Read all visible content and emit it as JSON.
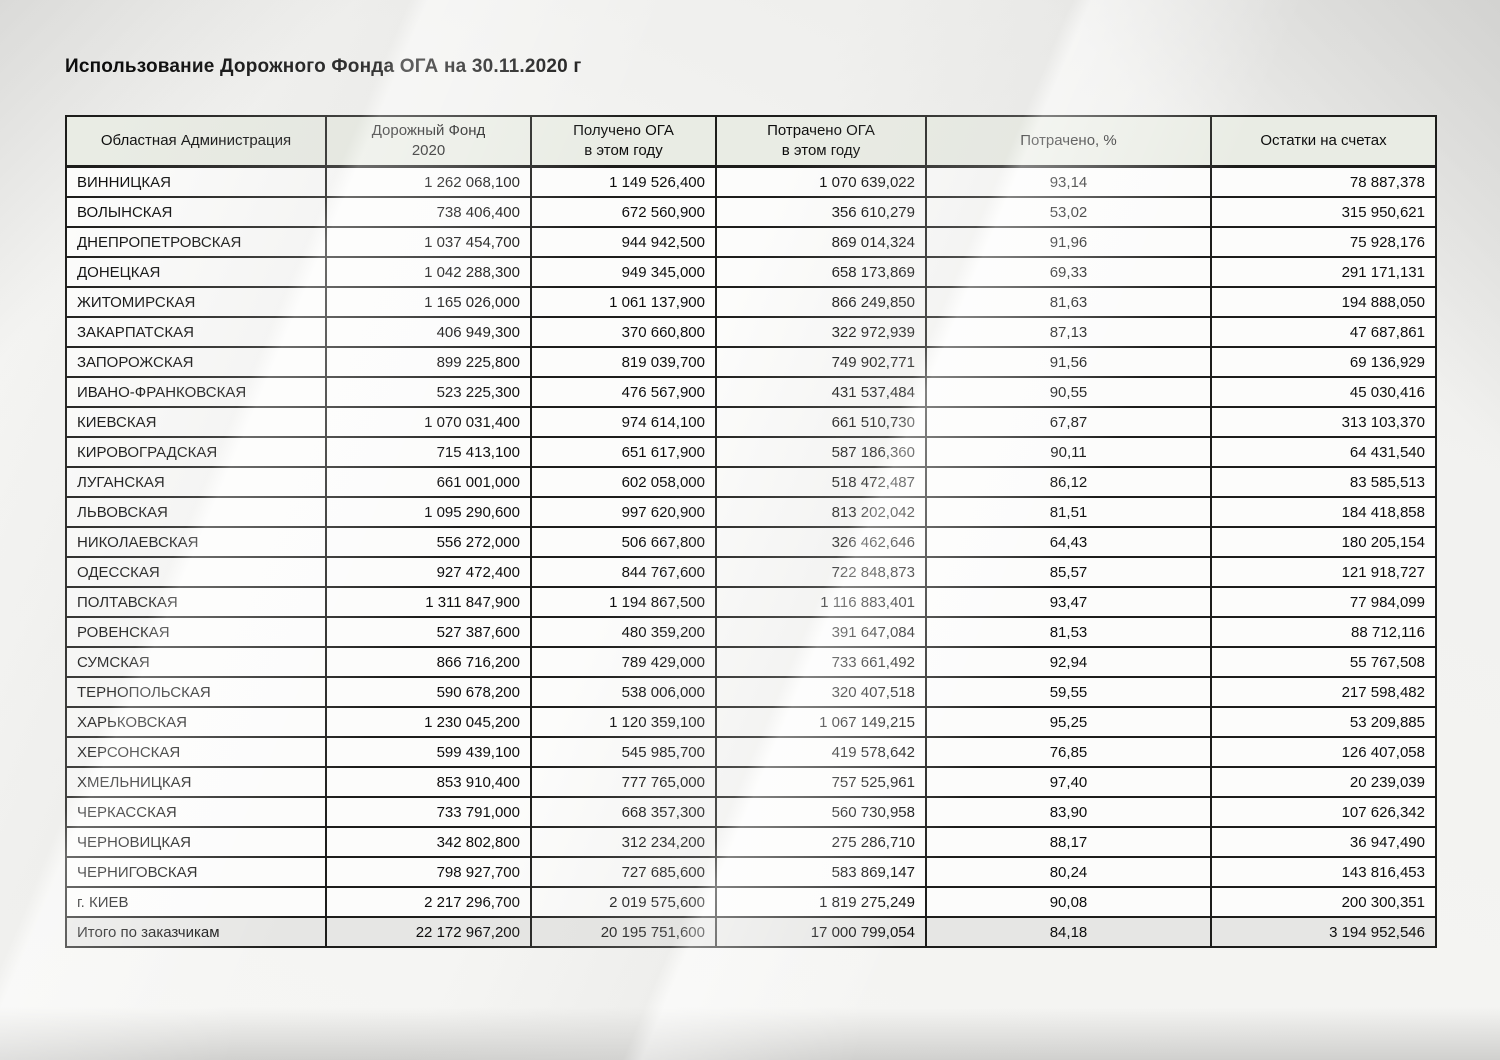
{
  "page": {
    "title": "Использование Дорожного Фонда ОГА на 30.11.2020 г"
  },
  "table": {
    "columns": [
      {
        "lines": [
          "Областная Администрация"
        ],
        "align": "left"
      },
      {
        "lines": [
          "Дорожный Фонд",
          "2020"
        ],
        "align": "right"
      },
      {
        "lines": [
          "Получено ОГА",
          "в этом году"
        ],
        "align": "right"
      },
      {
        "lines": [
          "Потрачено ОГА",
          "в этом году"
        ],
        "align": "right"
      },
      {
        "lines": [
          "Потрачено, %"
        ],
        "align": "center"
      },
      {
        "lines": [
          "Остатки на счетах"
        ],
        "align": "right"
      }
    ],
    "rows": [
      [
        "ВИННИЦКАЯ",
        "1 262 068,100",
        "1 149 526,400",
        "1 070 639,022",
        "93,14",
        "78 887,378"
      ],
      [
        "ВОЛЫНСКАЯ",
        "738 406,400",
        "672 560,900",
        "356 610,279",
        "53,02",
        "315 950,621"
      ],
      [
        "ДНЕПРОПЕТРОВСКАЯ",
        "1 037 454,700",
        "944 942,500",
        "869 014,324",
        "91,96",
        "75 928,176"
      ],
      [
        "ДОНЕЦКАЯ",
        "1 042 288,300",
        "949 345,000",
        "658 173,869",
        "69,33",
        "291 171,131"
      ],
      [
        "ЖИТОМИРСКАЯ",
        "1 165 026,000",
        "1 061 137,900",
        "866 249,850",
        "81,63",
        "194 888,050"
      ],
      [
        "ЗАКАРПАТСКАЯ",
        "406 949,300",
        "370 660,800",
        "322 972,939",
        "87,13",
        "47 687,861"
      ],
      [
        "ЗАПОРОЖСКАЯ",
        "899 225,800",
        "819 039,700",
        "749 902,771",
        "91,56",
        "69 136,929"
      ],
      [
        "ИВАНО-ФРАНКОВСКАЯ",
        "523 225,300",
        "476 567,900",
        "431 537,484",
        "90,55",
        "45 030,416"
      ],
      [
        "КИЕВСКАЯ",
        "1 070 031,400",
        "974 614,100",
        "661 510,730",
        "67,87",
        "313 103,370"
      ],
      [
        "КИРОВОГРАДСКАЯ",
        "715 413,100",
        "651 617,900",
        "587 186,360",
        "90,11",
        "64 431,540"
      ],
      [
        "ЛУГАНСКАЯ",
        "661 001,000",
        "602 058,000",
        "518 472,487",
        "86,12",
        "83 585,513"
      ],
      [
        "ЛЬВОВСКАЯ",
        "1 095 290,600",
        "997 620,900",
        "813 202,042",
        "81,51",
        "184 418,858"
      ],
      [
        "НИКОЛАЕВСКАЯ",
        "556 272,000",
        "506 667,800",
        "326 462,646",
        "64,43",
        "180 205,154"
      ],
      [
        "ОДЕССКАЯ",
        "927 472,400",
        "844 767,600",
        "722 848,873",
        "85,57",
        "121 918,727"
      ],
      [
        "ПОЛТАВСКАЯ",
        "1 311 847,900",
        "1 194 867,500",
        "1 116 883,401",
        "93,47",
        "77 984,099"
      ],
      [
        "РОВЕНСКАЯ",
        "527 387,600",
        "480 359,200",
        "391 647,084",
        "81,53",
        "88 712,116"
      ],
      [
        "СУМСКАЯ",
        "866 716,200",
        "789 429,000",
        "733 661,492",
        "92,94",
        "55 767,508"
      ],
      [
        "ТЕРНОПОЛЬСКАЯ",
        "590 678,200",
        "538 006,000",
        "320 407,518",
        "59,55",
        "217 598,482"
      ],
      [
        "ХАРЬКОВСКАЯ",
        "1 230 045,200",
        "1 120 359,100",
        "1 067 149,215",
        "95,25",
        "53 209,885"
      ],
      [
        "ХЕРСОНСКАЯ",
        "599 439,100",
        "545 985,700",
        "419 578,642",
        "76,85",
        "126 407,058"
      ],
      [
        "ХМЕЛЬНИЦКАЯ",
        "853 910,400",
        "777 765,000",
        "757 525,961",
        "97,40",
        "20 239,039"
      ],
      [
        "ЧЕРКАССКАЯ",
        "733 791,000",
        "668 357,300",
        "560 730,958",
        "83,90",
        "107 626,342"
      ],
      [
        "ЧЕРНОВИЦКАЯ",
        "342 802,800",
        "312 234,200",
        "275 286,710",
        "88,17",
        "36 947,490"
      ],
      [
        "ЧЕРНИГОВСКАЯ",
        "798 927,700",
        "727 685,600",
        "583 869,147",
        "80,24",
        "143 816,453"
      ],
      [
        "г. КИЕВ",
        "2 217 296,700",
        "2 019 575,600",
        "1 819 275,249",
        "90,08",
        "200 300,351"
      ]
    ],
    "total_row": [
      "Итого по заказчикам",
      "22 172 967,200",
      "20 195 751,600",
      "17 000 799,054",
      "84,18",
      "3 194 952,546"
    ],
    "colors": {
      "header_bg": "#e9ece4",
      "total_row_bg": "#e6e6e4",
      "row_bg": "#fcfcfb",
      "border": "#1d1d1b",
      "page_bg": "#f2f2f0"
    }
  }
}
